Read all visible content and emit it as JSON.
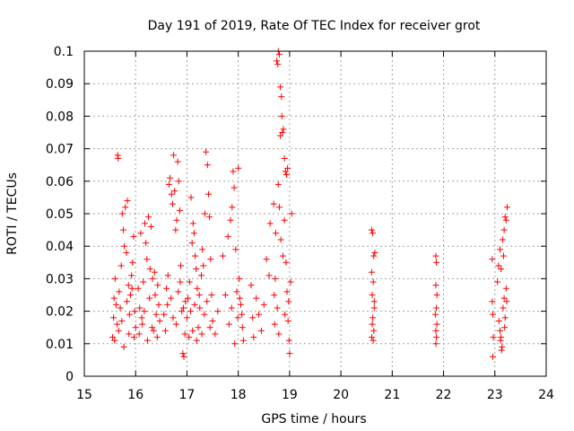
{
  "chart_data": {
    "type": "scatter",
    "title": "Day 191 of 2019, Rate Of TEC Index for receiver grot",
    "xlabel": "GPS time / hours",
    "ylabel": "ROTI / TECUs",
    "xlim": [
      15,
      24
    ],
    "ylim": [
      0,
      0.1
    ],
    "x_ticks": [
      "15",
      "16",
      "17",
      "18",
      "19",
      "20",
      "21",
      "22",
      "23",
      "24"
    ],
    "y_ticks": [
      "0",
      "0.01",
      "0.02",
      "0.03",
      "0.04",
      "0.05",
      "0.06",
      "0.07",
      "0.08",
      "0.09",
      "0.1"
    ],
    "grid": true,
    "marker": "+",
    "color": "#ff0000",
    "series": [
      {
        "points": [
          [
            15.55,
            0.012
          ],
          [
            15.57,
            0.018
          ],
          [
            15.58,
            0.024
          ],
          [
            15.6,
            0.03
          ],
          [
            15.62,
            0.022
          ],
          [
            15.64,
            0.016
          ],
          [
            15.65,
            0.068
          ],
          [
            15.66,
            0.067
          ],
          [
            15.68,
            0.026
          ],
          [
            15.7,
            0.021
          ],
          [
            15.72,
            0.034
          ],
          [
            15.74,
            0.05
          ],
          [
            15.76,
            0.045
          ],
          [
            15.78,
            0.04
          ],
          [
            15.8,
            0.052
          ],
          [
            15.82,
            0.038
          ],
          [
            15.84,
            0.054
          ],
          [
            15.86,
            0.028
          ],
          [
            15.88,
            0.019
          ],
          [
            15.9,
            0.025
          ],
          [
            15.92,
            0.031
          ],
          [
            15.94,
            0.035
          ],
          [
            15.96,
            0.043
          ],
          [
            15.98,
            0.02
          ],
          [
            16.0,
            0.015
          ],
          [
            15.59,
            0.011
          ],
          [
            15.67,
            0.014
          ],
          [
            15.73,
            0.017
          ],
          [
            15.77,
            0.009
          ],
          [
            15.83,
            0.023
          ],
          [
            15.87,
            0.013
          ],
          [
            15.93,
            0.027
          ],
          [
            15.97,
            0.012
          ],
          [
            16.05,
            0.027
          ],
          [
            16.08,
            0.021
          ],
          [
            16.1,
            0.044
          ],
          [
            16.12,
            0.018
          ],
          [
            16.15,
            0.029
          ],
          [
            16.18,
            0.047
          ],
          [
            16.2,
            0.041
          ],
          [
            16.22,
            0.036
          ],
          [
            16.25,
            0.049
          ],
          [
            16.28,
            0.033
          ],
          [
            16.3,
            0.046
          ],
          [
            16.33,
            0.03
          ],
          [
            16.35,
            0.014
          ],
          [
            16.38,
            0.025
          ],
          [
            16.4,
            0.019
          ],
          [
            16.42,
            0.012
          ],
          [
            16.45,
            0.022
          ],
          [
            16.07,
            0.013
          ],
          [
            16.13,
            0.016
          ],
          [
            16.17,
            0.02
          ],
          [
            16.23,
            0.011
          ],
          [
            16.27,
            0.024
          ],
          [
            16.32,
            0.015
          ],
          [
            16.37,
            0.032
          ],
          [
            16.43,
            0.028
          ],
          [
            16.47,
            0.017
          ],
          [
            16.55,
            0.019
          ],
          [
            16.6,
            0.027
          ],
          [
            16.63,
            0.031
          ],
          [
            16.65,
            0.059
          ],
          [
            16.67,
            0.061
          ],
          [
            16.7,
            0.056
          ],
          [
            16.72,
            0.053
          ],
          [
            16.74,
            0.068
          ],
          [
            16.76,
            0.057
          ],
          [
            16.78,
            0.045
          ],
          [
            16.8,
            0.048
          ],
          [
            16.82,
            0.066
          ],
          [
            16.84,
            0.06
          ],
          [
            16.86,
            0.051
          ],
          [
            16.88,
            0.034
          ],
          [
            16.9,
            0.02
          ],
          [
            16.92,
            0.007
          ],
          [
            16.94,
            0.006
          ],
          [
            16.96,
            0.013
          ],
          [
            16.58,
            0.014
          ],
          [
            16.62,
            0.022
          ],
          [
            16.69,
            0.024
          ],
          [
            16.73,
            0.018
          ],
          [
            16.79,
            0.016
          ],
          [
            16.83,
            0.026
          ],
          [
            16.87,
            0.029
          ],
          [
            16.93,
            0.021
          ],
          [
            16.97,
            0.023
          ],
          [
            17.0,
            0.018
          ],
          [
            17.02,
            0.024
          ],
          [
            17.05,
            0.029
          ],
          [
            17.08,
            0.055
          ],
          [
            17.1,
            0.041
          ],
          [
            17.12,
            0.047
          ],
          [
            17.14,
            0.044
          ],
          [
            17.16,
            0.037
          ],
          [
            17.18,
            0.033
          ],
          [
            17.2,
            0.027
          ],
          [
            17.22,
            0.015
          ],
          [
            17.25,
            0.021
          ],
          [
            17.28,
            0.031
          ],
          [
            17.3,
            0.039
          ],
          [
            17.32,
            0.034
          ],
          [
            17.35,
            0.05
          ],
          [
            17.37,
            0.069
          ],
          [
            17.4,
            0.065
          ],
          [
            17.42,
            0.056
          ],
          [
            17.44,
            0.049
          ],
          [
            17.46,
            0.036
          ],
          [
            17.48,
            0.025
          ],
          [
            17.5,
            0.017
          ],
          [
            17.04,
            0.012
          ],
          [
            17.07,
            0.02
          ],
          [
            17.11,
            0.014
          ],
          [
            17.15,
            0.022
          ],
          [
            17.19,
            0.011
          ],
          [
            17.24,
            0.025
          ],
          [
            17.29,
            0.013
          ],
          [
            17.34,
            0.019
          ],
          [
            17.39,
            0.023
          ],
          [
            17.45,
            0.015
          ],
          [
            17.55,
            0.013
          ],
          [
            17.6,
            0.02
          ],
          [
            17.7,
            0.037
          ],
          [
            17.75,
            0.025
          ],
          [
            17.8,
            0.043
          ],
          [
            17.85,
            0.048
          ],
          [
            17.88,
            0.052
          ],
          [
            17.9,
            0.063
          ],
          [
            17.92,
            0.058
          ],
          [
            17.95,
            0.039
          ],
          [
            17.97,
            0.026
          ],
          [
            18.0,
            0.064
          ],
          [
            18.02,
            0.03
          ],
          [
            18.05,
            0.022
          ],
          [
            18.08,
            0.015
          ],
          [
            18.1,
            0.011
          ],
          [
            17.82,
            0.016
          ],
          [
            17.87,
            0.021
          ],
          [
            17.93,
            0.01
          ],
          [
            17.99,
            0.018
          ],
          [
            18.03,
            0.024
          ],
          [
            18.07,
            0.019
          ],
          [
            18.25,
            0.028
          ],
          [
            18.28,
            0.018
          ],
          [
            18.3,
            0.012
          ],
          [
            18.35,
            0.024
          ],
          [
            18.4,
            0.019
          ],
          [
            18.45,
            0.014
          ],
          [
            18.5,
            0.022
          ],
          [
            18.55,
            0.036
          ],
          [
            18.6,
            0.031
          ],
          [
            18.62,
            0.047
          ],
          [
            18.7,
            0.025
          ],
          [
            18.72,
            0.03
          ],
          [
            18.75,
            0.097
          ],
          [
            18.77,
            0.096
          ],
          [
            18.78,
            0.1
          ],
          [
            18.8,
            0.099
          ],
          [
            18.82,
            0.089
          ],
          [
            18.85,
            0.08
          ],
          [
            18.86,
            0.075
          ],
          [
            18.84,
            0.086
          ],
          [
            18.88,
            0.076
          ],
          [
            18.9,
            0.067
          ],
          [
            18.92,
            0.063
          ],
          [
            18.94,
            0.062
          ],
          [
            18.96,
            0.064
          ],
          [
            18.73,
            0.044
          ],
          [
            18.78,
            0.059
          ],
          [
            18.8,
            0.052
          ],
          [
            18.83,
            0.042
          ],
          [
            18.87,
            0.037
          ],
          [
            18.9,
            0.048
          ],
          [
            18.93,
            0.035
          ],
          [
            18.95,
            0.026
          ],
          [
            18.97,
            0.017
          ],
          [
            18.99,
            0.011
          ],
          [
            19.0,
            0.007
          ],
          [
            19.02,
            0.029
          ],
          [
            19.04,
            0.05
          ],
          [
            18.69,
            0.053
          ],
          [
            18.82,
            0.074
          ],
          [
            18.71,
            0.016
          ],
          [
            18.76,
            0.021
          ],
          [
            18.79,
            0.013
          ],
          [
            18.91,
            0.019
          ],
          [
            18.98,
            0.023
          ],
          [
            20.6,
            0.045
          ],
          [
            20.62,
            0.044
          ],
          [
            20.64,
            0.037
          ],
          [
            20.66,
            0.038
          ],
          [
            20.6,
            0.032
          ],
          [
            20.63,
            0.029
          ],
          [
            20.61,
            0.025
          ],
          [
            20.65,
            0.021
          ],
          [
            20.62,
            0.018
          ],
          [
            20.64,
            0.014
          ],
          [
            20.6,
            0.012
          ],
          [
            20.63,
            0.011
          ],
          [
            20.61,
            0.016
          ],
          [
            20.65,
            0.023
          ],
          [
            21.85,
            0.037
          ],
          [
            21.86,
            0.035
          ],
          [
            21.85,
            0.028
          ],
          [
            21.87,
            0.025
          ],
          [
            21.86,
            0.021
          ],
          [
            21.84,
            0.019
          ],
          [
            21.87,
            0.016
          ],
          [
            21.85,
            0.014
          ],
          [
            21.86,
            0.012
          ],
          [
            21.85,
            0.01
          ],
          [
            22.95,
            0.036
          ],
          [
            22.95,
            0.023
          ],
          [
            22.96,
            0.019
          ],
          [
            22.97,
            0.012
          ],
          [
            22.96,
            0.006
          ],
          [
            23.05,
            0.029
          ],
          [
            23.07,
            0.034
          ],
          [
            23.1,
            0.039
          ],
          [
            23.12,
            0.033
          ],
          [
            23.15,
            0.042
          ],
          [
            23.17,
            0.037
          ],
          [
            23.18,
            0.045
          ],
          [
            23.2,
            0.049
          ],
          [
            23.22,
            0.048
          ],
          [
            23.24,
            0.052
          ],
          [
            23.08,
            0.017
          ],
          [
            23.1,
            0.014
          ],
          [
            23.12,
            0.012
          ],
          [
            23.14,
            0.009
          ],
          [
            23.16,
            0.021
          ],
          [
            23.18,
            0.024
          ],
          [
            23.2,
            0.018
          ],
          [
            23.22,
            0.027
          ],
          [
            23.11,
            0.011
          ],
          [
            23.13,
            0.008
          ],
          [
            23.19,
            0.015
          ],
          [
            23.23,
            0.023
          ]
        ]
      }
    ]
  }
}
